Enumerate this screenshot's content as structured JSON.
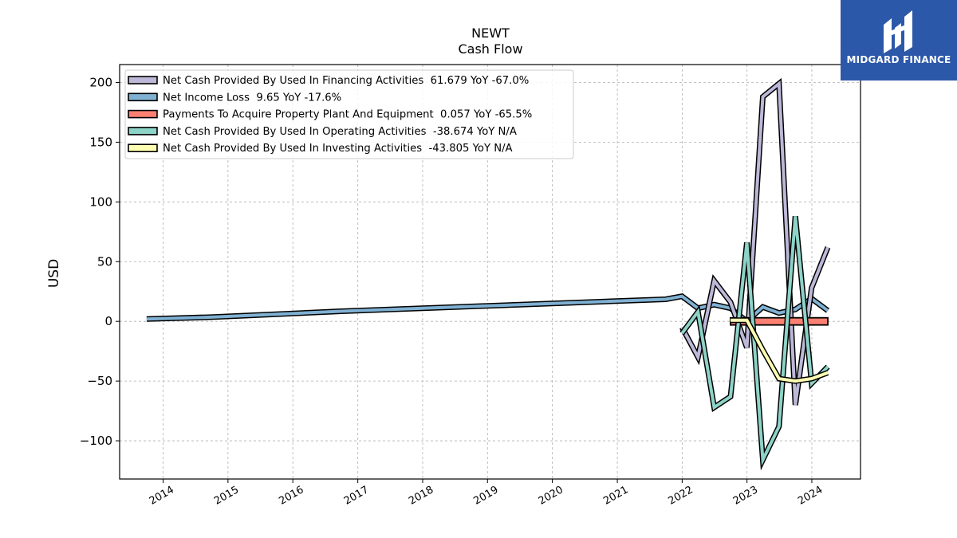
{
  "chart_data": {
    "type": "line",
    "title": "NEWT",
    "subtitle": "Cash Flow",
    "ylabel": "USD",
    "xlabel": "",
    "xlim": [
      "2013-05-01",
      "2024-10-01"
    ],
    "ylim": [
      -132,
      215
    ],
    "x_ticks": [
      "2014",
      "2015",
      "2016",
      "2017",
      "2018",
      "2019",
      "2020",
      "2021",
      "2022",
      "2023",
      "2024"
    ],
    "y_ticks": [
      -100,
      -50,
      0,
      50,
      100,
      150,
      200
    ],
    "y_tick_labels": [
      "−100",
      "−50",
      "0",
      "50",
      "100",
      "150",
      "200"
    ],
    "grid": true,
    "legend_position": "top-left",
    "series": [
      {
        "name": "Net Cash Provided By Used In Financing Activities  61.679 YoY -67.0%",
        "color": "#bcb8d8",
        "x": [
          "2021-12-31",
          "2022-03-31",
          "2022-06-30",
          "2022-09-30",
          "2022-12-31",
          "2023-03-31",
          "2023-06-30",
          "2023-09-30",
          "2023-12-31",
          "2024-03-31"
        ],
        "y": [
          -5,
          -30,
          34,
          16,
          -22,
          188,
          199,
          -70,
          28,
          62
        ]
      },
      {
        "name": "Net Income Loss  9.65 YoY -17.6%",
        "color": "#80b1d3",
        "x": [
          "2013-09-30",
          "2014-09-30",
          "2015-09-30",
          "2016-09-30",
          "2017-09-30",
          "2018-09-30",
          "2019-09-30",
          "2020-09-30",
          "2021-09-30",
          "2021-12-31",
          "2022-03-31",
          "2022-06-30",
          "2022-09-30",
          "2022-12-31",
          "2023-03-31",
          "2023-06-30",
          "2023-09-30",
          "2023-12-31",
          "2024-03-31"
        ],
        "y": [
          2,
          3.5,
          6,
          8.5,
          10.5,
          12.5,
          14.5,
          16.5,
          18.5,
          21,
          11,
          14,
          11,
          0,
          12,
          7,
          10,
          19,
          9
        ]
      },
      {
        "name": "Payments To Acquire Property Plant And Equipment  0.057 YoY -65.5%",
        "color": "#fb8072",
        "x": [
          "2022-09-30",
          "2022-12-31",
          "2023-03-31",
          "2023-06-30",
          "2023-09-30",
          "2023-12-31",
          "2024-03-31"
        ],
        "y": [
          0,
          0,
          0,
          0,
          0,
          0,
          0
        ]
      },
      {
        "name": "Net Cash Provided By Used In Operating Activities  -38.674 YoY N/A",
        "color": "#8dd3c7",
        "x": [
          "2021-12-31",
          "2022-03-31",
          "2022-06-30",
          "2022-09-30",
          "2022-12-31",
          "2023-03-31",
          "2023-06-30",
          "2023-09-30",
          "2023-12-31",
          "2024-03-31"
        ],
        "y": [
          -10,
          8,
          -72,
          -63,
          66,
          -116,
          -88,
          88,
          -52,
          -38
        ]
      },
      {
        "name": "Net Cash Provided By Used In Investing Activities  -43.805 YoY N/A",
        "color": "#ffffb3",
        "x": [
          "2022-09-30",
          "2022-12-31",
          "2023-03-31",
          "2023-06-30",
          "2023-09-30",
          "2023-12-31",
          "2024-03-31"
        ],
        "y": [
          1,
          1,
          -24,
          -48,
          -50,
          -48,
          -43
        ]
      }
    ]
  },
  "logo": {
    "text": "MIDGARD FINANCE",
    "color": "#2c58a9"
  }
}
